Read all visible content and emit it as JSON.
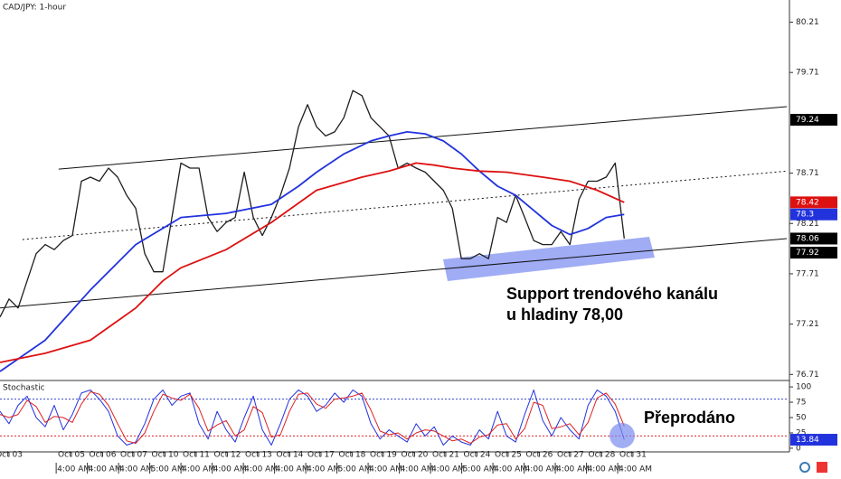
{
  "chart_data": [
    {
      "type": "line",
      "title": "CAD/JPY: 1-hour",
      "annotations": [
        "Support trendového kanálu",
        "u hladiny 78,00"
      ],
      "xlim": [
        -0.29,
        24.93
      ],
      "ylim": [
        76.65,
        80.43
      ],
      "yticks": [
        80.21,
        79.71,
        78.71,
        78.21,
        77.71,
        77.21,
        76.71
      ],
      "series": [
        {
          "color": "#1e1e1e",
          "width": 1.3,
          "x": [
            -0.29,
            0,
            0.29,
            0.58,
            0.87,
            1.16,
            1.45,
            1.74,
            2.03,
            2.32,
            2.61,
            2.9,
            3.19,
            3.48,
            3.77,
            4.06,
            4.35,
            4.64,
            4.93,
            5.22,
            5.51,
            5.8,
            6.09,
            6.38,
            6.67,
            6.96,
            7.25,
            7.54,
            7.83,
            8.12,
            8.41,
            8.7,
            8.99,
            9.28,
            9.57,
            9.86,
            10.15,
            10.44,
            10.73,
            11.02,
            11.31,
            11.6,
            11.89,
            12.18,
            12.47,
            12.76,
            13.05,
            13.34,
            13.63,
            13.92,
            14.21,
            14.5,
            14.79,
            15.08,
            15.37,
            15.66,
            15.95,
            16.24,
            16.53,
            16.82,
            17.11,
            17.4,
            17.69,
            17.98,
            18.27,
            18.56,
            18.85,
            19.14,
            19.43,
            19.72
          ],
          "values": [
            77.28,
            77.46,
            77.37,
            77.64,
            77.91,
            78.0,
            77.95,
            78.04,
            78.09,
            78.63,
            78.67,
            78.63,
            78.76,
            78.67,
            78.49,
            78.36,
            77.91,
            77.73,
            77.73,
            78.27,
            78.81,
            78.76,
            78.76,
            78.27,
            78.13,
            78.22,
            78.27,
            78.72,
            78.27,
            78.09,
            78.27,
            78.49,
            78.76,
            79.17,
            79.39,
            79.17,
            79.08,
            79.12,
            79.26,
            79.53,
            79.48,
            79.26,
            79.17,
            79.08,
            78.76,
            78.81,
            78.76,
            78.72,
            78.63,
            78.54,
            78.36,
            77.86,
            77.86,
            77.91,
            77.86,
            78.27,
            78.22,
            78.49,
            78.27,
            78.04,
            78.0,
            78.0,
            78.13,
            78.0,
            78.45,
            78.63,
            78.63,
            78.67,
            78.81,
            78.06
          ]
        },
        {
          "color": "#2233dd",
          "width": 1.8,
          "x": [
            -0.29,
            1.16,
            2.61,
            4.06,
            5.51,
            6.96,
            8.41,
            9.28,
            9.86,
            10.73,
            11.6,
            12.18,
            12.76,
            13.34,
            13.92,
            14.5,
            15.08,
            15.66,
            16.24,
            16.82,
            17.4,
            17.98,
            18.56,
            19.14,
            19.72
          ],
          "values": [
            76.74,
            77.05,
            77.55,
            78.0,
            78.27,
            78.31,
            78.4,
            78.58,
            78.72,
            78.9,
            79.03,
            79.08,
            79.12,
            79.1,
            79.03,
            78.9,
            78.73,
            78.58,
            78.49,
            78.34,
            78.19,
            78.1,
            78.16,
            78.27,
            78.3
          ]
        },
        {
          "color": "#dd1111",
          "width": 1.8,
          "x": [
            -0.29,
            1.16,
            2.61,
            4.06,
            4.93,
            5.51,
            6.96,
            8.41,
            9.86,
            11.31,
            12.18,
            13.05,
            13.63,
            14.21,
            15.08,
            15.95,
            17.11,
            17.98,
            18.85,
            19.72
          ],
          "values": [
            76.83,
            76.92,
            77.05,
            77.37,
            77.64,
            77.77,
            77.95,
            78.22,
            78.54,
            78.67,
            78.73,
            78.81,
            78.79,
            78.76,
            78.73,
            78.72,
            78.67,
            78.63,
            78.54,
            78.42
          ]
        }
      ],
      "trendlines": [
        {
          "x": [
            1.59,
            24.93
          ],
          "values": [
            78.75,
            79.37
          ],
          "dash": false
        },
        {
          "x": [
            0.43,
            24.93
          ],
          "values": [
            78.05,
            78.73
          ],
          "dash": true
        },
        {
          "x": [
            -0.29,
            24.93
          ],
          "values": [
            77.37,
            78.06
          ],
          "dash": false
        }
      ],
      "price_labels": [
        {
          "value": 79.24,
          "color": "#000000"
        },
        {
          "value": 77.92,
          "color": "#000000"
        }
      ]
    },
    {
      "type": "line",
      "title": "Stochastic",
      "annotations": [
        "Přeprodáno"
      ],
      "xlim": [
        -0.29,
        24.93
      ],
      "ylim": [
        -6,
        109
      ],
      "yticks": [
        100,
        75,
        50,
        25,
        0
      ],
      "levels": [
        {
          "value": 80,
          "color": "#3344cc"
        },
        {
          "value": 20,
          "color": "#dd2222"
        }
      ],
      "series": [
        {
          "color": "#2233dd",
          "width": 1,
          "x": [
            -0.29,
            0,
            0.29,
            0.58,
            0.87,
            1.16,
            1.45,
            1.74,
            2.03,
            2.32,
            2.61,
            2.9,
            3.19,
            3.48,
            3.77,
            4.06,
            4.35,
            4.64,
            4.93,
            5.22,
            5.51,
            5.8,
            6.09,
            6.38,
            6.67,
            6.96,
            7.25,
            7.54,
            7.83,
            8.12,
            8.41,
            8.7,
            8.99,
            9.28,
            9.57,
            9.86,
            10.15,
            10.44,
            10.73,
            11.02,
            11.31,
            11.6,
            11.89,
            12.18,
            12.47,
            12.76,
            13.05,
            13.34,
            13.63,
            13.92,
            14.21,
            14.5,
            14.79,
            15.08,
            15.37,
            15.66,
            15.95,
            16.24,
            16.53,
            16.82,
            17.11,
            17.4,
            17.69,
            17.98,
            18.27,
            18.56,
            18.85,
            19.14,
            19.43,
            19.72
          ],
          "values": [
            60,
            40,
            70,
            85,
            50,
            35,
            70,
            30,
            55,
            90,
            95,
            80,
            60,
            20,
            5,
            10,
            40,
            80,
            95,
            70,
            85,
            90,
            40,
            15,
            60,
            30,
            10,
            50,
            85,
            30,
            5,
            40,
            80,
            95,
            85,
            60,
            70,
            90,
            75,
            95,
            85,
            40,
            15,
            30,
            20,
            10,
            40,
            20,
            35,
            5,
            20,
            10,
            5,
            30,
            15,
            60,
            20,
            10,
            55,
            95,
            45,
            20,
            50,
            30,
            15,
            70,
            95,
            85,
            60,
            13.84
          ]
        },
        {
          "color": "#dd2222",
          "width": 1,
          "x": [
            -0.29,
            0,
            0.29,
            0.58,
            0.87,
            1.16,
            1.45,
            1.74,
            2.03,
            2.32,
            2.61,
            2.9,
            3.19,
            3.48,
            3.77,
            4.06,
            4.35,
            4.64,
            4.93,
            5.22,
            5.51,
            5.8,
            6.09,
            6.38,
            6.67,
            6.96,
            7.25,
            7.54,
            7.83,
            8.12,
            8.41,
            8.7,
            8.99,
            9.28,
            9.57,
            9.86,
            10.15,
            10.44,
            10.73,
            11.02,
            11.31,
            11.6,
            11.89,
            12.18,
            12.47,
            12.76,
            13.05,
            13.34,
            13.63,
            13.92,
            14.21,
            14.5,
            14.79,
            15.08,
            15.37,
            15.66,
            15.95,
            16.24,
            16.53,
            16.82,
            17.11,
            17.4,
            17.69,
            17.98,
            18.27,
            18.56,
            18.85,
            19.14,
            19.43,
            19.72
          ],
          "values": [
            55,
            50,
            55,
            78,
            68,
            42,
            52,
            50,
            42,
            72,
            92,
            88,
            70,
            40,
            12,
            8,
            25,
            60,
            88,
            82,
            78,
            88,
            65,
            28,
            38,
            45,
            20,
            30,
            68,
            58,
            18,
            22,
            60,
            88,
            90,
            72,
            65,
            80,
            82,
            85,
            90,
            62,
            28,
            22,
            25,
            15,
            25,
            30,
            28,
            20,
            12,
            15,
            8,
            18,
            22,
            38,
            40,
            15,
            32,
            75,
            70,
            32,
            35,
            40,
            22,
            42,
            82,
            90,
            72,
            36
          ]
        }
      ],
      "xticks": [
        {
          "value": 0,
          "label": "Oct 03"
        },
        {
          "value": 2,
          "label": "Oct 05"
        },
        {
          "value": 3,
          "label": "Oct 06"
        },
        {
          "value": 4,
          "label": "Oct 07"
        },
        {
          "value": 5,
          "label": "Oct 10"
        },
        {
          "value": 6,
          "label": "Oct 11"
        },
        {
          "value": 7,
          "label": "Oct 12"
        },
        {
          "value": 8,
          "label": "Oct 13"
        },
        {
          "value": 9,
          "label": "Oct 14"
        },
        {
          "value": 10,
          "label": "Oct 17"
        },
        {
          "value": 11,
          "label": "Oct 18"
        },
        {
          "value": 12,
          "label": "Oct 19"
        },
        {
          "value": 13,
          "label": "Oct 20"
        },
        {
          "value": 14,
          "label": "Oct 21"
        },
        {
          "value": 15,
          "label": "Oct 24"
        },
        {
          "value": 16,
          "label": "Oct 25"
        },
        {
          "value": 17,
          "label": "Oct 26"
        },
        {
          "value": 18,
          "label": "Oct 27"
        },
        {
          "value": 19,
          "label": "Oct 28"
        },
        {
          "value": 20,
          "label": "Oct 31"
        }
      ],
      "x_time_ticks": [
        {
          "value": 1.54,
          "label": "4:00 AM"
        },
        {
          "value": 2.54,
          "label": "4:00 AM"
        },
        {
          "value": 3.54,
          "label": "4:00 AM"
        },
        {
          "value": 4.54,
          "label": "5:00 AM"
        },
        {
          "value": 5.54,
          "label": "4:00 AM"
        },
        {
          "value": 6.54,
          "label": "4:00 AM"
        },
        {
          "value": 7.54,
          "label": "4:00 AM"
        },
        {
          "value": 8.54,
          "label": "4:00 AM"
        },
        {
          "value": 9.54,
          "label": "4:00 AM"
        },
        {
          "value": 10.54,
          "label": "5:00 AM"
        },
        {
          "value": 11.54,
          "label": "4:00 AM"
        },
        {
          "value": 12.54,
          "label": "4:00 AM"
        },
        {
          "value": 13.54,
          "label": "4:00 AM"
        },
        {
          "value": 14.54,
          "label": "5:00 AM"
        },
        {
          "value": 15.54,
          "label": "4:00 AM"
        },
        {
          "value": 16.54,
          "label": "4:00 AM"
        },
        {
          "value": 17.54,
          "label": "4:00 AM"
        },
        {
          "value": 18.54,
          "label": "4:00 AM"
        },
        {
          "value": 19.54,
          "label": "4:00 AM"
        }
      ]
    }
  ]
}
